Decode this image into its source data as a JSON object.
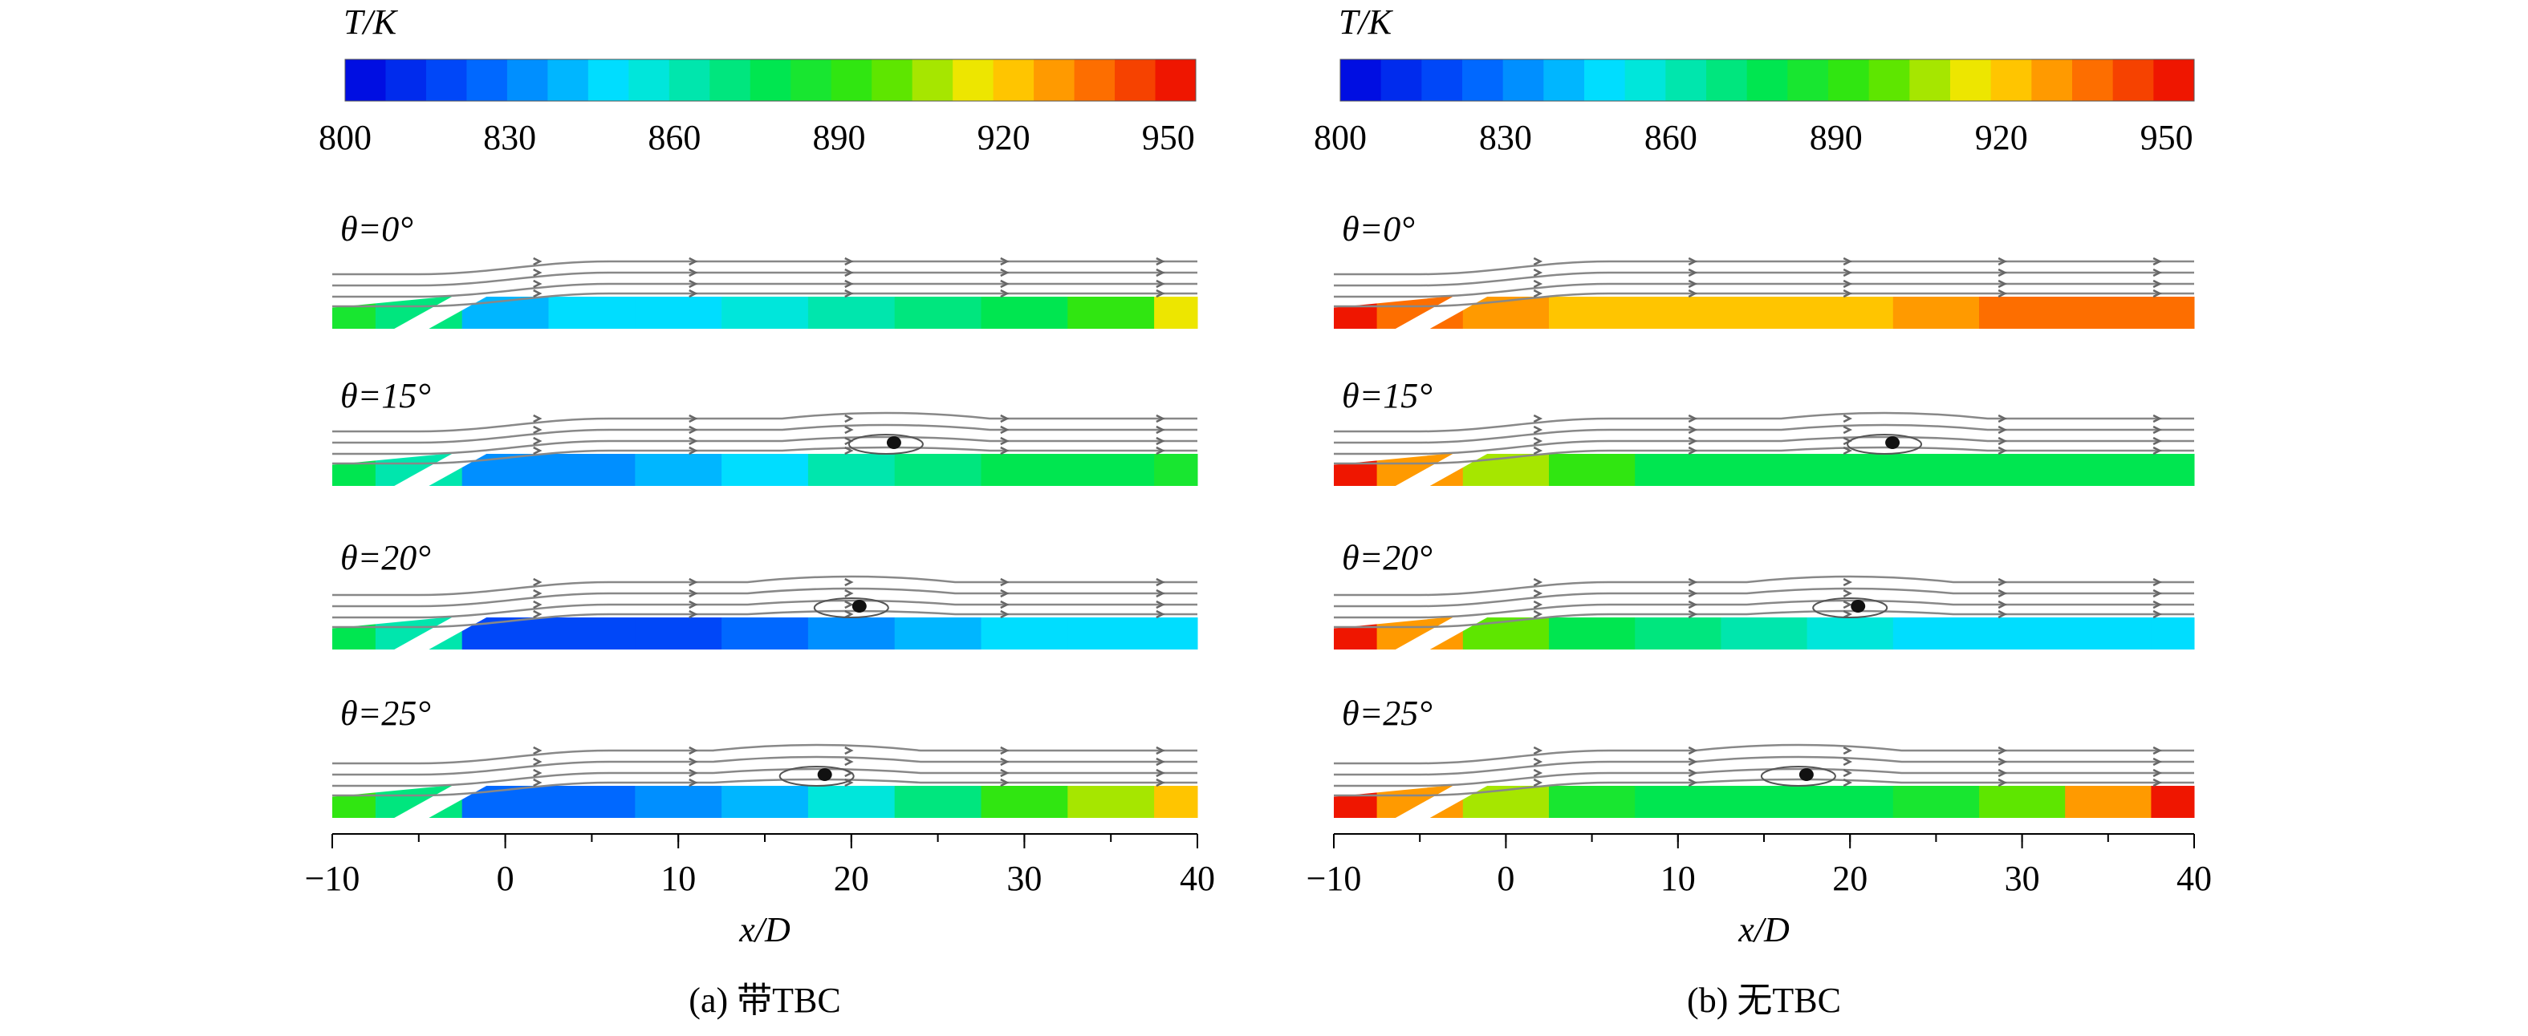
{
  "chart_data": [
    {
      "type": "contour",
      "colorbar_label": "T/K",
      "clim": [
        800,
        955
      ],
      "cticks": [
        800,
        830,
        860,
        890,
        920,
        950
      ],
      "colormap": "jet",
      "xlabel": "x/D",
      "xlim": [
        -10,
        40
      ],
      "xticks": [
        {
          "value": -10,
          "label": "−10"
        },
        0,
        10,
        20,
        30,
        40
      ],
      "caption": "(a) 带TBC",
      "x": [
        -10,
        -5,
        0,
        5,
        10,
        15,
        20,
        25,
        30,
        35,
        40
      ],
      "panels": [
        {
          "label": "θ=0°",
          "values": [
            885,
            870,
            840,
            845,
            850,
            855,
            860,
            870,
            880,
            895,
            915
          ]
        },
        {
          "label": "θ=15°",
          "values": [
            880,
            865,
            830,
            830,
            840,
            850,
            860,
            870,
            875,
            880,
            885
          ]
        },
        {
          "label": "θ=20°",
          "values": [
            880,
            865,
            820,
            818,
            822,
            828,
            835,
            840,
            845,
            848,
            850
          ]
        },
        {
          "label": "θ=25°",
          "values": [
            890,
            870,
            825,
            825,
            830,
            840,
            855,
            870,
            890,
            910,
            925
          ]
        }
      ]
    },
    {
      "type": "contour",
      "colorbar_label": "T/K",
      "clim": [
        800,
        955
      ],
      "cticks": [
        800,
        830,
        860,
        890,
        920,
        950
      ],
      "colormap": "jet",
      "xlabel": "x/D",
      "xlim": [
        -10,
        40
      ],
      "xticks": [
        {
          "value": -10,
          "label": "−10"
        },
        0,
        10,
        20,
        30,
        40
      ],
      "caption": "(b) 无TBC",
      "x": [
        -10,
        -5,
        0,
        5,
        10,
        15,
        20,
        25,
        30,
        35,
        40
      ],
      "panels": [
        {
          "label": "θ=0°",
          "values": [
            950,
            940,
            930,
            925,
            920,
            920,
            925,
            930,
            935,
            935,
            935
          ]
        },
        {
          "label": "θ=15°",
          "values": [
            950,
            930,
            910,
            895,
            880,
            875,
            875,
            878,
            880,
            880,
            880
          ]
        },
        {
          "label": "θ=20°",
          "values": [
            950,
            930,
            900,
            880,
            870,
            860,
            855,
            850,
            848,
            848,
            848
          ]
        },
        {
          "label": "θ=25°",
          "values": [
            950,
            930,
            905,
            885,
            880,
            878,
            880,
            885,
            900,
            930,
            950
          ]
        }
      ]
    }
  ]
}
